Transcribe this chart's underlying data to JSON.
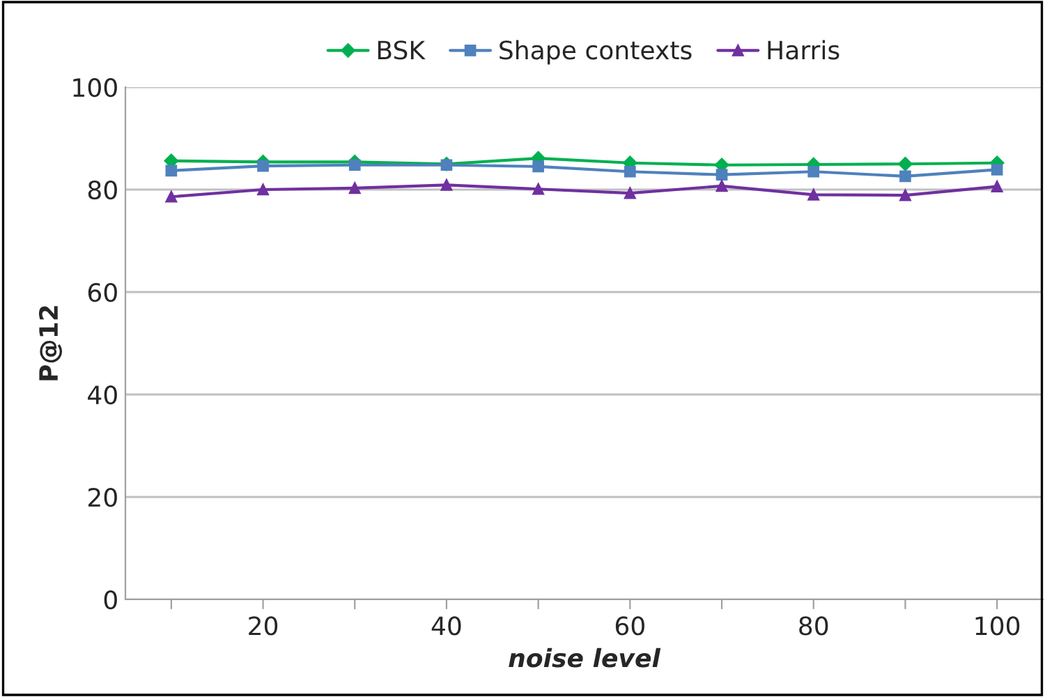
{
  "chart_data": {
    "type": "line",
    "xlabel": "noise level",
    "ylabel": "P@12",
    "categories": [
      null,
      "20",
      null,
      "40",
      null,
      "60",
      null,
      "80",
      null,
      "100"
    ],
    "series": [
      {
        "name": "BSK",
        "color": "#00b050",
        "marker": "diamond",
        "values": [
          85.6,
          85.4,
          85.4,
          85.0,
          86.1,
          85.2,
          84.8,
          84.9,
          85.0,
          85.2
        ]
      },
      {
        "name": "Shape contexts",
        "color": "#4f81bd",
        "marker": "square",
        "values": [
          83.7,
          84.6,
          84.8,
          84.8,
          84.5,
          83.5,
          82.9,
          83.5,
          82.6,
          83.9
        ]
      },
      {
        "name": "Harris",
        "color": "#7030a0",
        "marker": "triangle",
        "values": [
          78.6,
          80.0,
          80.3,
          80.9,
          80.1,
          79.3,
          80.7,
          79.0,
          78.9,
          80.6
        ]
      }
    ],
    "ylim": [
      0,
      100
    ],
    "yticks": [
      0,
      20,
      40,
      60,
      80,
      100
    ],
    "grid": "y",
    "legend": "top",
    "line_style": "solid"
  }
}
